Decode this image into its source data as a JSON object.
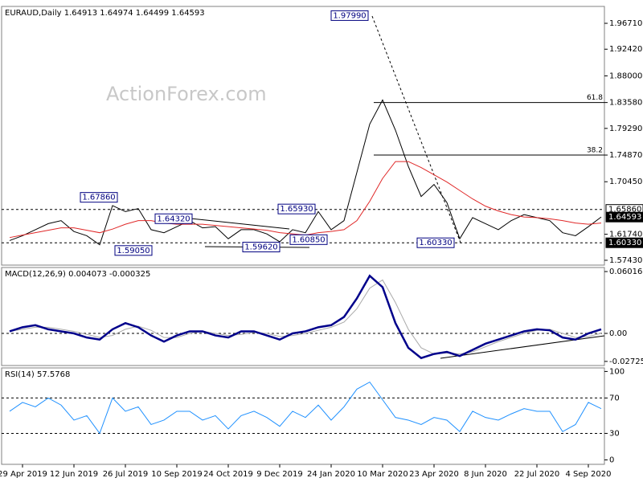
{
  "chart_data": [
    {
      "type": "line",
      "title": "EURAUD,Daily  1.64913 1.64974 1.64499 1.64593",
      "watermark": "ActionForex.com",
      "ylim": [
        1.5663,
        1.9951
      ],
      "yticks": [
        {
          "value": 1.9671,
          "label": "1.96710"
        },
        {
          "value": 1.9242,
          "label": "1.92420"
        },
        {
          "value": 1.88,
          "label": "1.88000"
        },
        {
          "value": 1.8358,
          "label": "1.83580"
        },
        {
          "value": 1.7929,
          "label": "1.79290"
        },
        {
          "value": 1.7487,
          "label": "1.74870"
        },
        {
          "value": 1.7045,
          "label": "1.70450"
        },
        {
          "value": 1.6174,
          "label": "1.61740"
        },
        {
          "value": 1.5743,
          "label": "1.57430"
        }
      ],
      "levels": [
        1.6586,
        1.6033
      ],
      "fib": [
        {
          "value": 1.8358,
          "label": "61.8"
        },
        {
          "value": 1.7487,
          "label": "38.2"
        }
      ],
      "price_labels": [
        {
          "value": 1.6586,
          "label": "1.65860"
        },
        {
          "value": 1.64593,
          "label": "1.64593"
        },
        {
          "value": 1.6033,
          "label": "1.60330"
        }
      ],
      "annotations": [
        {
          "value": 1.6786,
          "label": "1.67860"
        },
        {
          "value": 1.6432,
          "label": "1.64320"
        },
        {
          "value": 1.6593,
          "label": "1.65930"
        },
        {
          "value": 1.9799,
          "label": "1.97990"
        },
        {
          "value": 1.5905,
          "label": "1.59050"
        },
        {
          "value": 1.5962,
          "label": "1.59620"
        },
        {
          "value": 1.6085,
          "label": "1.60850"
        },
        {
          "value": 1.6033,
          "label": "1.60330"
        }
      ],
      "series": [
        {
          "color": "#000000",
          "width": 1,
          "values": [
            1.607,
            1.615,
            1.625,
            1.635,
            1.64,
            1.622,
            1.615,
            1.6,
            1.665,
            1.655,
            1.66,
            1.625,
            1.62,
            1.63,
            1.64,
            1.628,
            1.63,
            1.61,
            1.625,
            1.625,
            1.618,
            1.605,
            1.625,
            1.62,
            1.655,
            1.625,
            1.64,
            1.72,
            1.8,
            1.84,
            1.79,
            1.73,
            1.68,
            1.7,
            1.67,
            1.61,
            1.645,
            1.635,
            1.625,
            1.64,
            1.65,
            1.645,
            1.64,
            1.62,
            1.615,
            1.63,
            1.646
          ]
        },
        {
          "color": "#e02828",
          "width": 1,
          "values": [
            1.612,
            1.616,
            1.62,
            1.624,
            1.628,
            1.628,
            1.624,
            1.62,
            1.626,
            1.634,
            1.64,
            1.64,
            1.636,
            1.634,
            1.634,
            1.634,
            1.632,
            1.63,
            1.628,
            1.626,
            1.624,
            1.62,
            1.618,
            1.616,
            1.62,
            1.622,
            1.625,
            1.64,
            1.672,
            1.71,
            1.738,
            1.738,
            1.728,
            1.716,
            1.704,
            1.69,
            1.676,
            1.664,
            1.656,
            1.65,
            1.646,
            1.645,
            1.643,
            1.64,
            1.636,
            1.634,
            1.636
          ]
        }
      ]
    },
    {
      "type": "line",
      "title": "MACD(12,26,9) 0.004073 -0.000325",
      "ylim": [
        -0.03125,
        0.0641
      ],
      "yticks": [
        0.060165,
        {
          "value": 0,
          "label": "0.00"
        },
        -0.02725
      ],
      "levels": [
        0
      ],
      "series": [
        {
          "color": "#aaaaaa",
          "width": 1,
          "values": [
            0.002,
            0.004,
            0.006,
            0.006,
            0.004,
            0.002,
            -0.001,
            -0.004,
            -0.002,
            0.004,
            0.007,
            0.003,
            -0.004,
            -0.004,
            0,
            0.002,
            0,
            -0.002,
            -0.001,
            0.001,
            0,
            -0.003,
            -0.002,
            0,
            0.003,
            0.006,
            0.011,
            0.024,
            0.044,
            0.052,
            0.03,
            0.004,
            -0.014,
            -0.02,
            -0.019,
            -0.02,
            -0.018,
            -0.013,
            -0.008,
            -0.004,
            0,
            0.003,
            0.004,
            0,
            -0.004,
            -0.003,
            0
          ]
        },
        {
          "color": "#00008b",
          "width": 2.5,
          "values": [
            0.002,
            0.006,
            0.008,
            0.004,
            0.002,
            0,
            -0.004,
            -0.006,
            0.004,
            0.01,
            0.006,
            -0.002,
            -0.008,
            -0.002,
            0.002,
            0.002,
            -0.002,
            -0.004,
            0.002,
            0.002,
            -0.002,
            -0.006,
            0,
            0.002,
            0.006,
            0.008,
            0.016,
            0.034,
            0.056,
            0.045,
            0.01,
            -0.014,
            -0.024,
            -0.02,
            -0.018,
            -0.022,
            -0.016,
            -0.01,
            -0.006,
            -0.002,
            0.002,
            0.004,
            0.003,
            -0.004,
            -0.006,
            0,
            0.004
          ]
        }
      ]
    },
    {
      "type": "line",
      "title": "RSI(14) 57.5768",
      "ylim": [
        -5,
        104
      ],
      "yticks": [
        100,
        70,
        30,
        0
      ],
      "levels": [
        70,
        30
      ],
      "categories": [
        null,
        "29 Apr 2019",
        null,
        null,
        null,
        "12 Jun 2019",
        null,
        null,
        null,
        "26 Jul 2019",
        null,
        null,
        null,
        "10 Sep 2019",
        null,
        null,
        null,
        "24 Oct 2019",
        null,
        null,
        null,
        "9 Dec 2019",
        null,
        null,
        null,
        "24 Jan 2020",
        null,
        null,
        null,
        "10 Mar 2020",
        null,
        null,
        null,
        "23 Apr 2020",
        null,
        null,
        null,
        "8 Jun 2020",
        null,
        null,
        null,
        "22 Jul 2020",
        null,
        null,
        null,
        "4 Sep 2020",
        null
      ],
      "series": [
        {
          "color": "#1e90ff",
          "width": 1,
          "values": [
            55,
            65,
            60,
            70,
            62,
            45,
            50,
            30,
            70,
            55,
            60,
            40,
            45,
            55,
            55,
            45,
            50,
            35,
            50,
            55,
            48,
            38,
            55,
            48,
            62,
            45,
            60,
            80,
            88,
            68,
            48,
            45,
            40,
            48,
            45,
            32,
            55,
            48,
            45,
            52,
            58,
            55,
            55,
            32,
            40,
            65,
            58
          ]
        }
      ]
    }
  ]
}
